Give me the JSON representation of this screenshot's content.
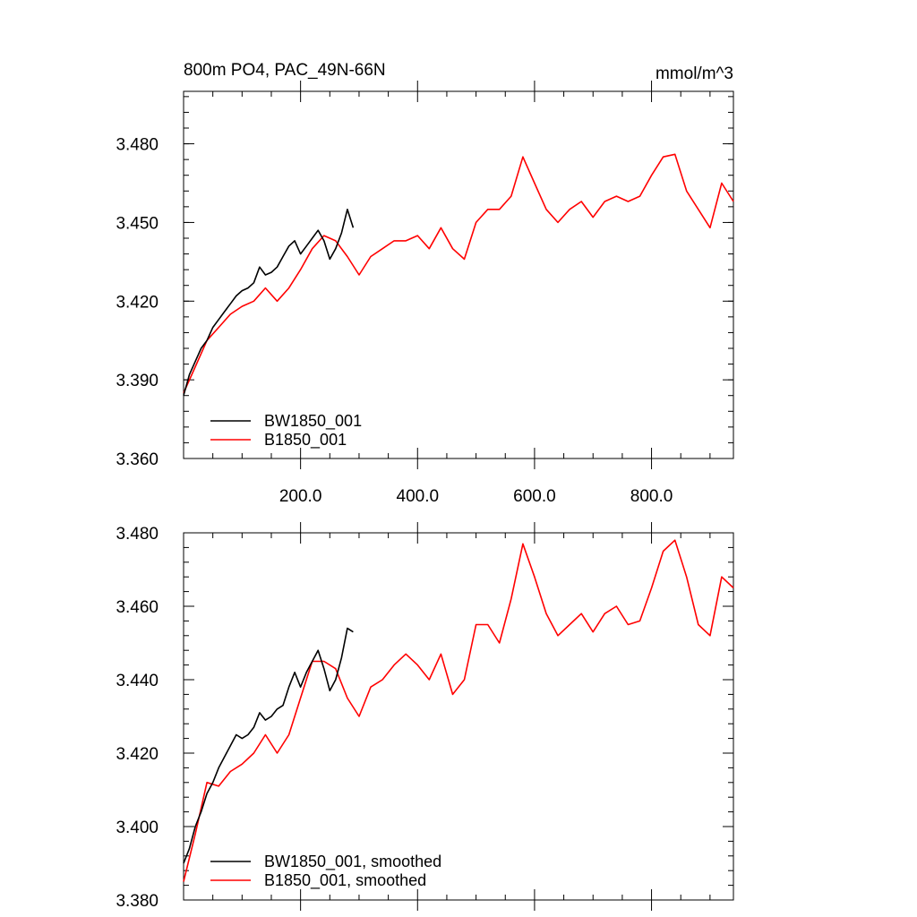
{
  "chart_data": [
    {
      "type": "line",
      "title": "800m PO4, PAC_49N-66N",
      "units": "mmol/m^3",
      "xlim": [
        0,
        940
      ],
      "ylim": [
        3.36,
        3.5
      ],
      "yticks": [
        3.36,
        3.39,
        3.42,
        3.45,
        3.48
      ],
      "ytick_labels": [
        "3.360",
        "3.390",
        "3.420",
        "3.450",
        "3.480"
      ],
      "xticks": [
        200,
        400,
        600,
        800
      ],
      "xtick_labels": [
        "200.0",
        "400.0",
        "600.0",
        "800.0"
      ],
      "grid": false,
      "legend_position": "bottom-left",
      "series": [
        {
          "name": "BW1850_001",
          "color": "#000000",
          "x": [
            0,
            10,
            20,
            30,
            40,
            50,
            60,
            70,
            80,
            90,
            100,
            110,
            120,
            130,
            140,
            150,
            160,
            170,
            180,
            190,
            200,
            210,
            220,
            230,
            240,
            250,
            260,
            270,
            280,
            290
          ],
          "y": [
            3.384,
            3.392,
            3.397,
            3.402,
            3.405,
            3.41,
            3.413,
            3.416,
            3.419,
            3.422,
            3.424,
            3.425,
            3.427,
            3.433,
            3.43,
            3.431,
            3.433,
            3.437,
            3.441,
            3.443,
            3.438,
            3.441,
            3.444,
            3.447,
            3.443,
            3.436,
            3.44,
            3.446,
            3.455,
            3.448
          ]
        },
        {
          "name": "B1850_001",
          "color": "#ff0000",
          "x": [
            0,
            20,
            40,
            60,
            80,
            100,
            120,
            140,
            160,
            180,
            200,
            220,
            240,
            260,
            280,
            300,
            320,
            340,
            360,
            380,
            400,
            420,
            440,
            460,
            480,
            500,
            520,
            540,
            560,
            580,
            600,
            620,
            640,
            660,
            680,
            700,
            720,
            740,
            760,
            780,
            800,
            820,
            840,
            860,
            880,
            900,
            920,
            940
          ],
          "y": [
            3.385,
            3.395,
            3.405,
            3.41,
            3.415,
            3.418,
            3.42,
            3.425,
            3.42,
            3.425,
            3.432,
            3.44,
            3.445,
            3.443,
            3.437,
            3.43,
            3.437,
            3.44,
            3.443,
            3.443,
            3.445,
            3.44,
            3.448,
            3.44,
            3.436,
            3.45,
            3.455,
            3.455,
            3.46,
            3.475,
            3.465,
            3.455,
            3.45,
            3.455,
            3.458,
            3.452,
            3.458,
            3.46,
            3.458,
            3.46,
            3.468,
            3.475,
            3.476,
            3.462,
            3.455,
            3.448,
            3.465,
            3.458
          ]
        }
      ]
    },
    {
      "type": "line",
      "xlim": [
        0,
        940
      ],
      "ylim": [
        3.38,
        3.48
      ],
      "yticks": [
        3.38,
        3.4,
        3.42,
        3.44,
        3.46,
        3.48
      ],
      "ytick_labels": [
        "3.380",
        "3.400",
        "3.420",
        "3.440",
        "3.460",
        "3.480"
      ],
      "xticks": [
        200,
        400,
        600,
        800
      ],
      "grid": false,
      "legend_position": "bottom-left",
      "series": [
        {
          "name": "BW1850_001, smoothed",
          "color": "#000000",
          "x": [
            0,
            10,
            20,
            30,
            40,
            50,
            60,
            70,
            80,
            90,
            100,
            110,
            120,
            130,
            140,
            150,
            160,
            170,
            180,
            190,
            200,
            210,
            220,
            230,
            240,
            250,
            260,
            270,
            280,
            290
          ],
          "y": [
            3.39,
            3.394,
            3.4,
            3.404,
            3.409,
            3.412,
            3.416,
            3.419,
            3.422,
            3.425,
            3.424,
            3.425,
            3.427,
            3.431,
            3.429,
            3.43,
            3.432,
            3.433,
            3.438,
            3.442,
            3.438,
            3.442,
            3.445,
            3.448,
            3.443,
            3.437,
            3.44,
            3.446,
            3.454,
            3.453
          ]
        },
        {
          "name": "B1850_001, smoothed",
          "color": "#ff0000",
          "x": [
            0,
            20,
            40,
            60,
            80,
            100,
            120,
            140,
            160,
            180,
            200,
            220,
            240,
            260,
            280,
            300,
            320,
            340,
            360,
            380,
            400,
            420,
            440,
            460,
            480,
            500,
            520,
            540,
            560,
            580,
            600,
            620,
            640,
            660,
            680,
            700,
            720,
            740,
            760,
            780,
            800,
            820,
            840,
            860,
            880,
            900,
            920,
            940
          ],
          "y": [
            3.385,
            3.398,
            3.412,
            3.411,
            3.415,
            3.417,
            3.42,
            3.425,
            3.42,
            3.425,
            3.435,
            3.445,
            3.445,
            3.443,
            3.435,
            3.43,
            3.438,
            3.44,
            3.444,
            3.447,
            3.444,
            3.44,
            3.447,
            3.436,
            3.44,
            3.455,
            3.455,
            3.45,
            3.462,
            3.477,
            3.468,
            3.458,
            3.452,
            3.455,
            3.458,
            3.453,
            3.458,
            3.46,
            3.455,
            3.456,
            3.465,
            3.475,
            3.478,
            3.468,
            3.455,
            3.452,
            3.468,
            3.465
          ]
        }
      ]
    }
  ]
}
